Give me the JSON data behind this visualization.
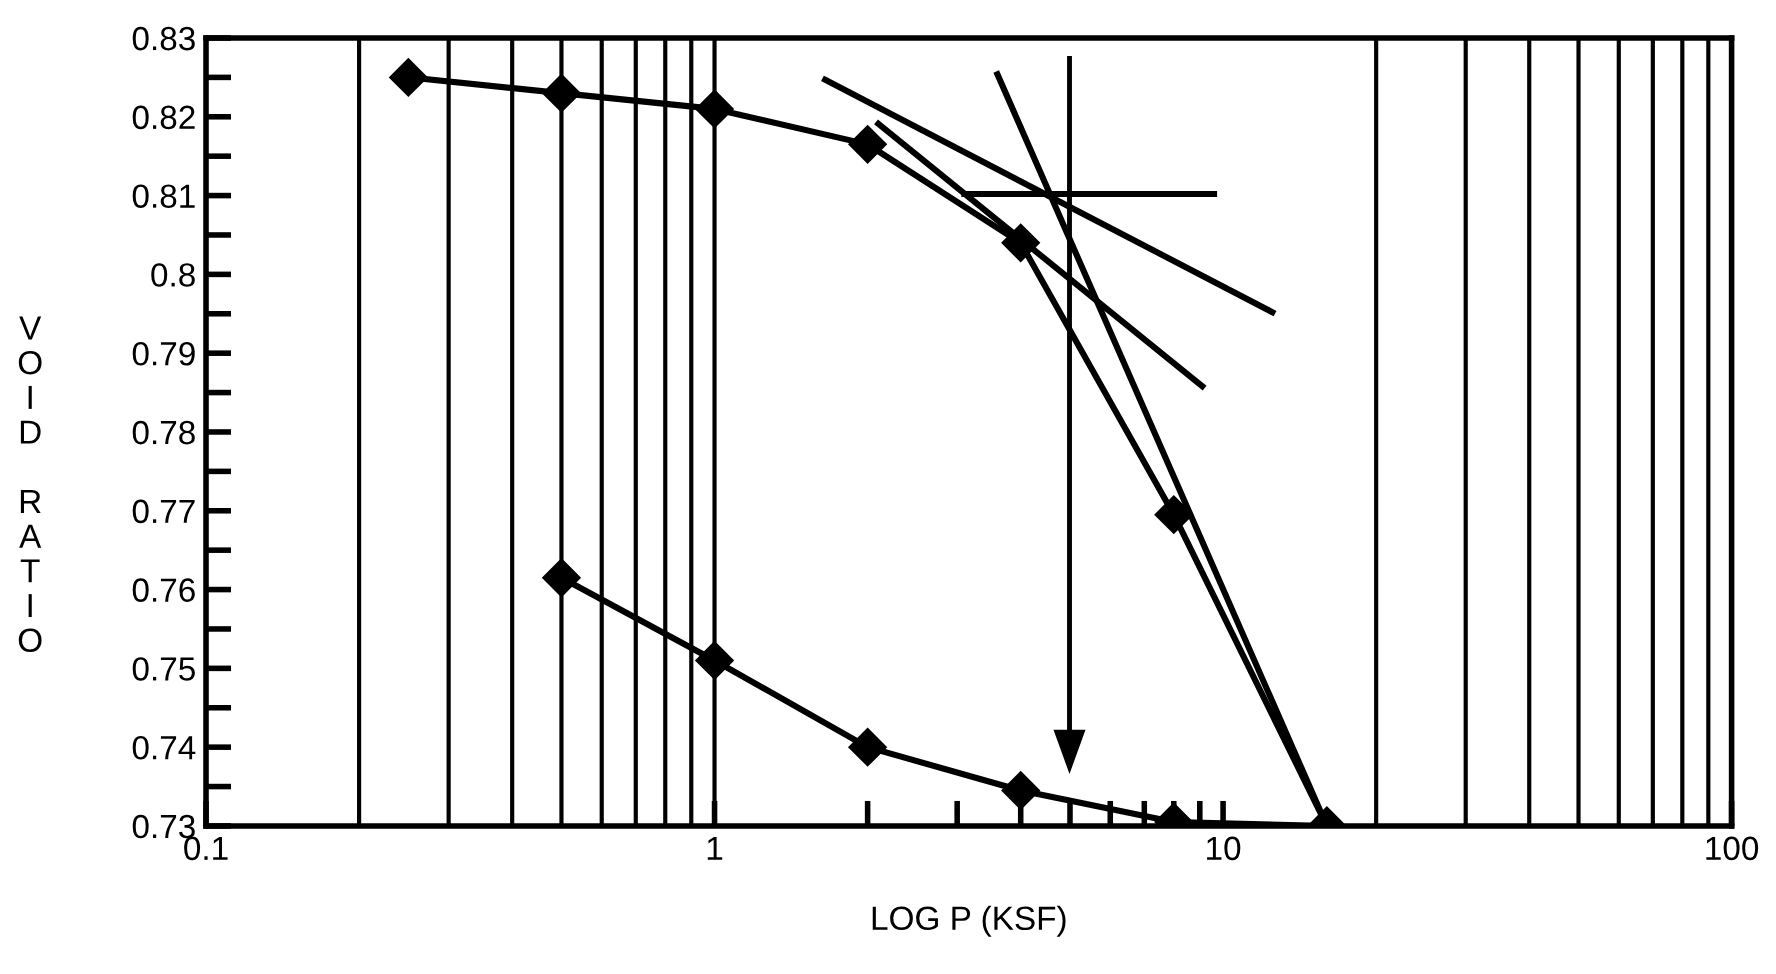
{
  "chart_data": {
    "type": "line",
    "xlabel": "LOG P (KSF)",
    "ylabel": "VOID RATIO",
    "log": "x",
    "grid": false,
    "legend": false,
    "xlim": [
      0.1,
      100
    ],
    "xticks": [
      0.1,
      1,
      {
        "value": 2,
        "label": null
      },
      {
        "value": 3,
        "label": null
      },
      {
        "value": 4,
        "label": null
      },
      {
        "value": 5,
        "label": null
      },
      {
        "value": 6,
        "label": null
      },
      {
        "value": 7,
        "label": null
      },
      {
        "value": 8,
        "label": null
      },
      {
        "value": 9,
        "label": null
      },
      10,
      100
    ],
    "ylim": [
      0.73,
      0.83
    ],
    "yticks": [
      0.73,
      {
        "value": 0.735,
        "label": null
      },
      0.74,
      {
        "value": 0.745,
        "label": null
      },
      0.75,
      {
        "value": 0.755,
        "label": null
      },
      0.76,
      {
        "value": 0.765,
        "label": null
      },
      0.77,
      {
        "value": 0.775,
        "label": null
      },
      0.78,
      {
        "value": 0.785,
        "label": null
      },
      0.79,
      {
        "value": 0.795,
        "label": null
      },
      0.8,
      {
        "value": 0.805,
        "label": null
      },
      0.81,
      {
        "value": 0.815,
        "label": null
      },
      0.82,
      {
        "value": 0.825,
        "label": null
      },
      0.83
    ],
    "series": [
      {
        "color": "#000000",
        "marker": "diamond",
        "x": [
          0.25,
          0.5,
          1,
          2,
          4,
          8,
          16
        ],
        "values": [
          0.825,
          0.823,
          0.821,
          0.8165,
          0.804,
          0.7695,
          0.73
        ]
      },
      {
        "color": "#000000",
        "marker": "diamond",
        "x": [
          0.5,
          1,
          2,
          4,
          8,
          16
        ],
        "values": [
          0.7615,
          0.751,
          0.74,
          0.7345,
          0.7305,
          0.73
        ]
      },
      {
        "color": "#000000",
        "marker": "none",
        "x": [
          3.1,
          9.6
        ],
        "values": [
          0.8102,
          0.8102
        ]
      },
      {
        "color": "#000000",
        "marker": "none",
        "x": [
          1.65,
          12.5
        ],
        "values": [
          0.8247,
          0.7952
        ]
      },
      {
        "color": "#000000",
        "marker": "none",
        "x": [
          2.1,
          9.1
        ],
        "values": [
          0.8191,
          0.7858
        ]
      },
      {
        "color": "#000000",
        "marker": "none",
        "x": [
          3.6,
          16
        ],
        "values": [
          0.8254,
          0.73
        ]
      }
    ],
    "ref_lines": [
      {
        "axis": "x",
        "value": 0.2
      },
      {
        "axis": "x",
        "value": 0.3
      },
      {
        "axis": "x",
        "value": 0.4
      },
      {
        "axis": "x",
        "value": 0.5
      },
      {
        "axis": "x",
        "value": 0.6
      },
      {
        "axis": "x",
        "value": 0.7
      },
      {
        "axis": "x",
        "value": 0.8
      },
      {
        "axis": "x",
        "value": 0.9
      },
      {
        "axis": "x",
        "value": 1
      },
      {
        "axis": "x",
        "value": 20
      },
      {
        "axis": "x",
        "value": 30
      },
      {
        "axis": "x",
        "value": 40
      },
      {
        "axis": "x",
        "value": 50
      },
      {
        "axis": "x",
        "value": 60
      },
      {
        "axis": "x",
        "value": 70
      },
      {
        "axis": "x",
        "value": 80
      },
      {
        "axis": "x",
        "value": 90
      },
      {
        "axis": "x",
        "value": 100
      }
    ]
  }
}
